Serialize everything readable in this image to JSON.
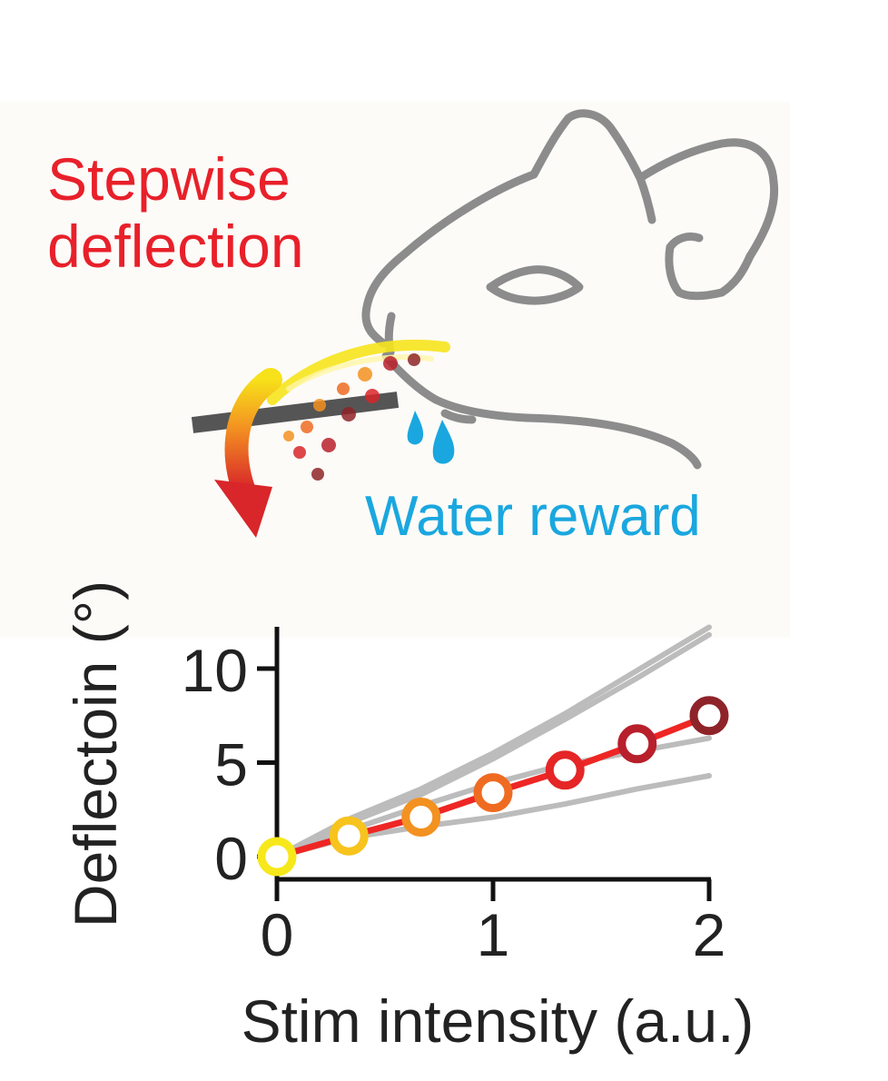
{
  "illustration": {
    "stimulus_label": [
      "Stepwise",
      "deflection"
    ],
    "reward_label": "Water reward",
    "colors": {
      "stimulus": "#e8202a",
      "reward": "#1aa7df",
      "mouse_outline": "#8c8c8c",
      "whisker_bar": "#555555"
    }
  },
  "chart_data": {
    "type": "line",
    "xlabel": "Stim intensity (a.u.)",
    "ylabel": "Deflectoin (°)",
    "xlim": [
      0,
      2
    ],
    "ylim": [
      0,
      10
    ],
    "x_ticks": [
      "0",
      "1",
      "2"
    ],
    "y_ticks": [
      "0",
      "5",
      "10"
    ],
    "grid": false,
    "series": [
      {
        "role": "mean",
        "color": "#ee2624",
        "x": [
          0,
          0.333,
          0.667,
          1.0,
          1.333,
          1.667,
          2.0
        ],
        "values": [
          0,
          1.1,
          2.1,
          3.4,
          4.6,
          6.0,
          7.5
        ],
        "marker_colors": [
          "#f7e81b",
          "#f7c31c",
          "#f39121",
          "#ef6b22",
          "#e52526",
          "#b8202b",
          "#8e2429"
        ]
      },
      {
        "role": "individual",
        "color": "#bcbcbc",
        "x": [
          0,
          0.333,
          0.667,
          1.0,
          1.333,
          1.667,
          2.0
        ],
        "values": [
          0,
          2.0,
          3.6,
          5.5,
          7.6,
          9.9,
          12.2
        ]
      },
      {
        "role": "individual",
        "color": "#bcbcbc",
        "x": [
          0,
          0.333,
          0.667,
          1.0,
          1.333,
          1.667,
          2.0
        ],
        "values": [
          0,
          1.8,
          3.3,
          5.2,
          7.3,
          9.5,
          11.8
        ]
      },
      {
        "role": "individual",
        "color": "#bcbcbc",
        "x": [
          0,
          0.333,
          0.667,
          1.0,
          1.333,
          1.667,
          2.0
        ],
        "values": [
          0,
          1.4,
          2.7,
          3.9,
          4.9,
          5.6,
          6.3
        ]
      },
      {
        "role": "individual",
        "color": "#bcbcbc",
        "x": [
          0,
          0.333,
          0.667,
          1.0,
          1.333,
          1.667,
          2.0
        ],
        "values": [
          0,
          1.0,
          1.6,
          2.1,
          2.8,
          3.6,
          4.3
        ]
      }
    ]
  }
}
